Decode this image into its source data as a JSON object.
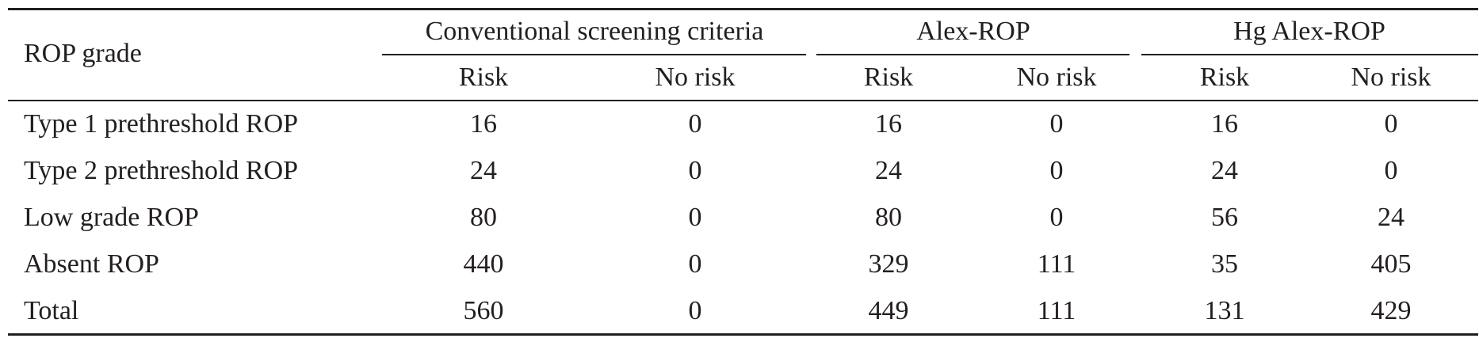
{
  "table": {
    "row_header": "ROP grade",
    "groups": [
      {
        "label": "Conventional screening criteria",
        "subcolumns": [
          "Risk",
          "No risk"
        ]
      },
      {
        "label": "Alex-ROP",
        "subcolumns": [
          "Risk",
          "No risk"
        ]
      },
      {
        "label": "Hg Alex-ROP",
        "subcolumns": [
          "Risk",
          "No risk"
        ]
      }
    ],
    "rows": [
      {
        "label": "Type 1 prethreshold ROP",
        "values": [
          "16",
          "0",
          "16",
          "0",
          "16",
          "0"
        ]
      },
      {
        "label": "Type 2 prethreshold ROP",
        "values": [
          "24",
          "0",
          "24",
          "0",
          "24",
          "0"
        ]
      },
      {
        "label": "Low grade ROP",
        "values": [
          "80",
          "0",
          "80",
          "0",
          "56",
          "24"
        ]
      },
      {
        "label": "Absent ROP",
        "values": [
          "440",
          "0",
          "329",
          "111",
          "35",
          "405"
        ]
      },
      {
        "label": "Total",
        "values": [
          "560",
          "0",
          "449",
          "111",
          "131",
          "429"
        ]
      }
    ]
  }
}
